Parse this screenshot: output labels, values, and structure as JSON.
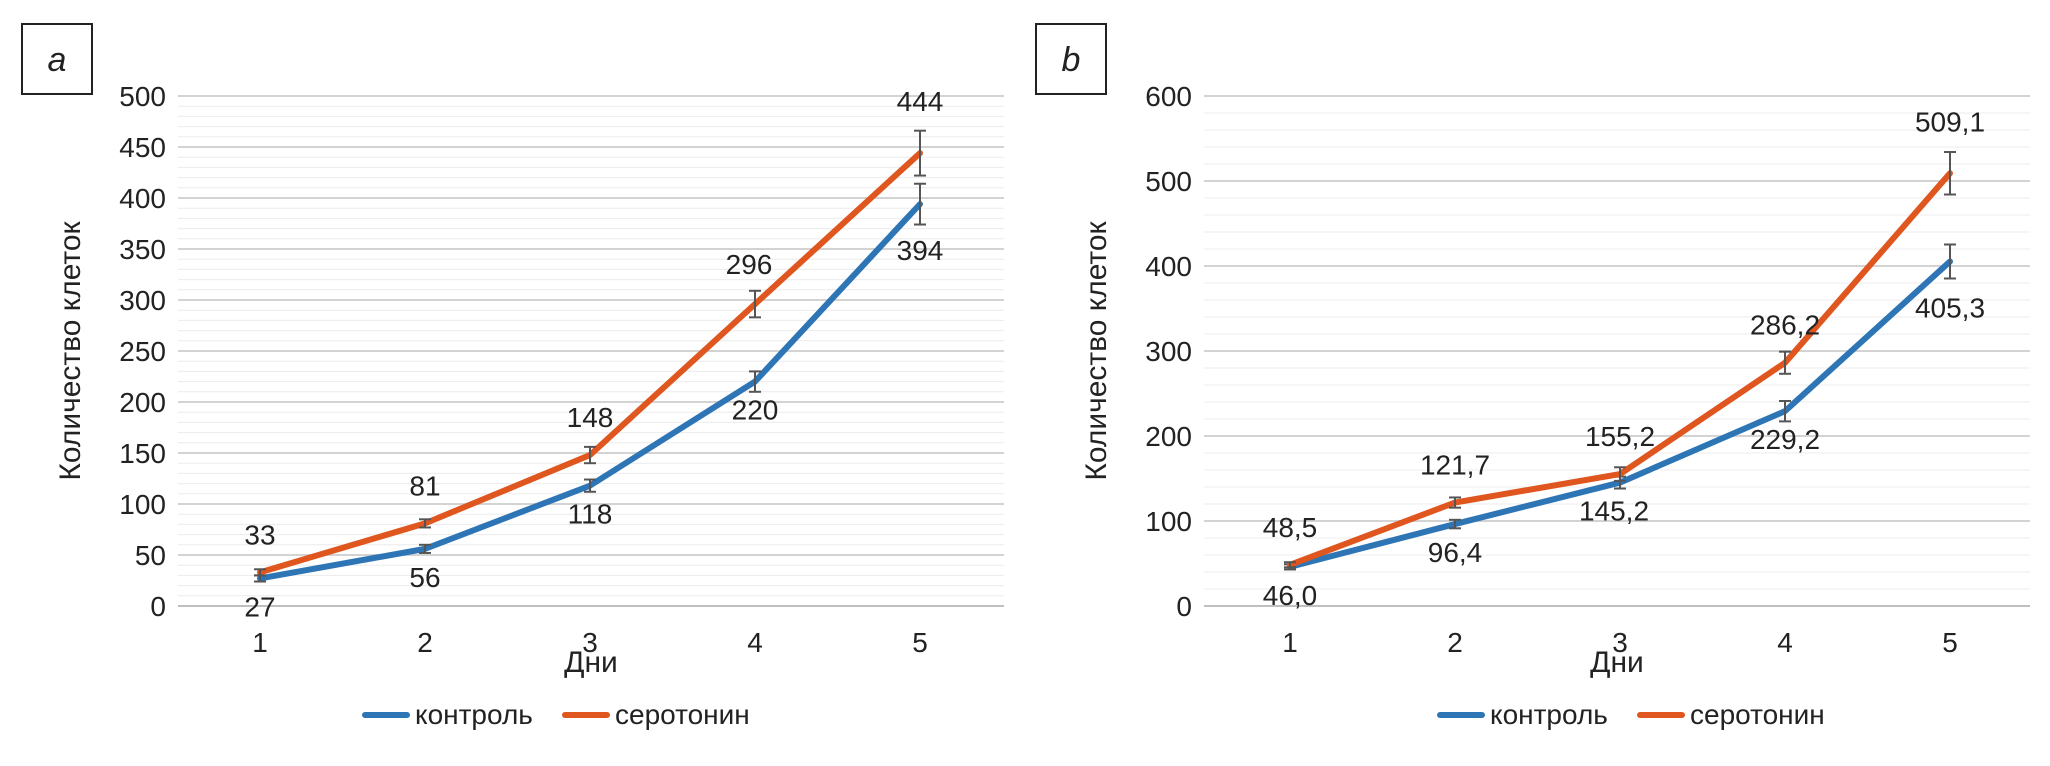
{
  "colors": {
    "control": "#2e75b6",
    "serotonin": "#e0561f",
    "grid": "#d3d3d3",
    "axis": "#bfbfbf",
    "errorbar": "#555555"
  },
  "chart_data": [
    {
      "type": "line",
      "panel_label": "a",
      "categories": [
        "1",
        "2",
        "3",
        "4",
        "5"
      ],
      "xlabel": "Дни",
      "ylabel": "Количество клеток",
      "ylim": [
        0,
        500
      ],
      "yticks": [
        "0",
        "50",
        "100",
        "150",
        "200",
        "250",
        "300",
        "350",
        "400",
        "450",
        "500"
      ],
      "grid": true,
      "legend_position": "bottom",
      "series": [
        {
          "name": "контроль",
          "color_key": "control",
          "values": [
            27,
            56,
            118,
            220,
            394
          ],
          "labels": [
            "27",
            "56",
            "118",
            "220",
            "394"
          ],
          "errors": [
            3,
            4,
            6,
            10,
            20
          ]
        },
        {
          "name": "серотонин",
          "color_key": "serotonin",
          "values": [
            33,
            81,
            148,
            296,
            444
          ],
          "labels": [
            "33",
            "81",
            "148",
            "296",
            "444"
          ],
          "errors": [
            3,
            4,
            8,
            13,
            22
          ]
        }
      ]
    },
    {
      "type": "line",
      "panel_label": "b",
      "categories": [
        "1",
        "2",
        "3",
        "4",
        "5"
      ],
      "xlabel": "Дни",
      "ylabel": "Количество клеток",
      "ylim": [
        0,
        600
      ],
      "yticks": [
        "0",
        "100",
        "200",
        "300",
        "400",
        "500",
        "600"
      ],
      "grid": true,
      "legend_position": "bottom",
      "series": [
        {
          "name": "контроль",
          "color_key": "control",
          "values": [
            46.0,
            96.4,
            145.2,
            229.2,
            405.3
          ],
          "labels": [
            "46,0",
            "96,4",
            "145,2",
            "229,2",
            "405,3"
          ],
          "errors": [
            3,
            5,
            7,
            12,
            20
          ]
        },
        {
          "name": "серотонин",
          "color_key": "serotonin",
          "values": [
            48.5,
            121.7,
            155.2,
            286.2,
            509.1
          ],
          "labels": [
            "48,5",
            "121,7",
            "155,2",
            "286,2",
            "509,1"
          ],
          "errors": [
            3,
            6,
            8,
            13,
            25
          ]
        }
      ]
    }
  ]
}
